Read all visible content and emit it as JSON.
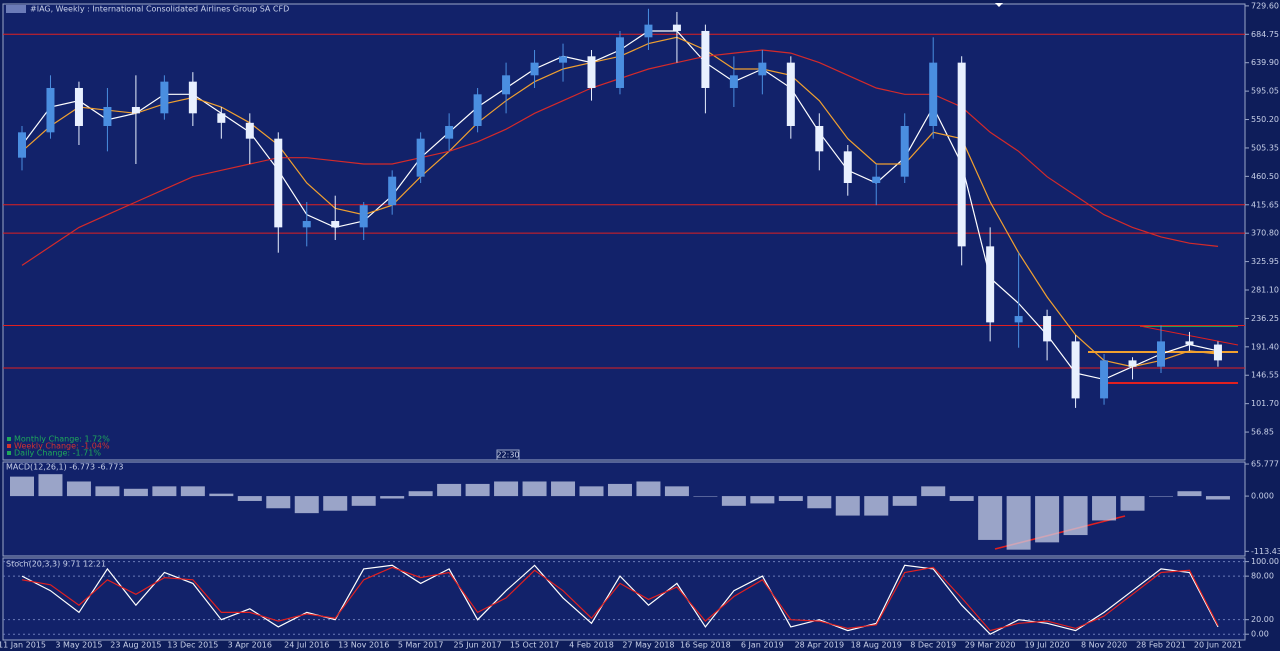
{
  "header": {
    "title": "#IAG, Weekly : International Consolidated Airlines Group SA CFD"
  },
  "info": [
    {
      "text": "Monthly Change: 1.72%",
      "color": "#1fa85a"
    },
    {
      "text": "Weekly Change: -1.04%",
      "color": "#d0332f"
    },
    {
      "text": "Daily Change: -1.71%",
      "color": "#1fa85a"
    }
  ],
  "time_label": "22:30",
  "chart_data": [
    {
      "type": "candlestick",
      "categories": [
        "11 Jan 2015",
        null,
        "3 May 2015",
        null,
        "23 Aug 2015",
        null,
        "13 Dec 2015",
        null,
        "3 Apr 2016",
        null,
        "24 Jul 2016",
        null,
        "13 Nov 2016",
        null,
        "5 Mar 2017",
        null,
        "25 Jun 2017",
        null,
        "15 Oct 2017",
        null,
        "4 Feb 2018",
        null,
        "27 May 2018",
        null,
        "16 Sep 2018",
        null,
        "6 Jan 2019",
        null,
        "28 Apr 2019",
        null,
        "18 Aug 2019",
        null,
        "8 Dec 2019",
        null,
        "29 Mar 2020",
        null,
        "19 Jul 2020",
        null,
        "8 Nov 2020",
        null,
        "28 Feb 2021",
        null,
        "20 Jun 2021"
      ],
      "open": [
        490,
        530,
        600,
        540,
        570,
        560,
        610,
        560,
        545,
        520,
        380,
        390,
        380,
        415,
        460,
        520,
        540,
        590,
        620,
        640,
        650,
        600,
        680,
        700,
        690,
        600,
        620,
        640,
        540,
        500,
        450,
        460,
        540,
        640,
        350,
        230,
        240,
        200,
        110,
        170,
        160,
        200,
        195
      ],
      "high": [
        540,
        620,
        610,
        600,
        620,
        620,
        625,
        570,
        560,
        530,
        420,
        430,
        420,
        470,
        530,
        560,
        600,
        640,
        660,
        670,
        660,
        690,
        725,
        720,
        700,
        650,
        660,
        650,
        560,
        510,
        480,
        560,
        680,
        650,
        380,
        340,
        250,
        210,
        180,
        175,
        225,
        215,
        200
      ],
      "low": [
        470,
        520,
        510,
        500,
        480,
        550,
        540,
        520,
        480,
        340,
        350,
        360,
        360,
        400,
        450,
        500,
        530,
        560,
        600,
        610,
        580,
        590,
        660,
        640,
        560,
        570,
        590,
        520,
        470,
        430,
        415,
        450,
        520,
        320,
        200,
        190,
        170,
        95,
        100,
        140,
        150,
        185,
        160
      ],
      "close": [
        530,
        600,
        540,
        570,
        560,
        610,
        560,
        545,
        520,
        380,
        390,
        380,
        415,
        460,
        520,
        540,
        590,
        620,
        640,
        650,
        600,
        680,
        700,
        690,
        600,
        620,
        640,
        540,
        500,
        450,
        460,
        540,
        640,
        350,
        230,
        240,
        200,
        110,
        170,
        160,
        200,
        195,
        170
      ],
      "up_color": "#4a8ee0",
      "down_color": "#e8f0ff",
      "overlays": [
        {
          "color": "#ffffff",
          "values": [
            510,
            570,
            580,
            550,
            560,
            590,
            590,
            560,
            530,
            470,
            400,
            380,
            390,
            430,
            490,
            530,
            570,
            600,
            630,
            650,
            640,
            660,
            690,
            690,
            640,
            610,
            630,
            600,
            530,
            470,
            450,
            490,
            570,
            480,
            300,
            260,
            210,
            150,
            140,
            160,
            180,
            195,
            185
          ]
        },
        {
          "color": "#f0a030",
          "values": [
            500,
            540,
            570,
            565,
            560,
            575,
            585,
            570,
            545,
            510,
            450,
            410,
            400,
            415,
            460,
            500,
            545,
            580,
            610,
            630,
            640,
            650,
            670,
            680,
            660,
            630,
            630,
            620,
            580,
            520,
            480,
            480,
            530,
            520,
            420,
            340,
            270,
            210,
            170,
            160,
            170,
            185,
            180
          ]
        },
        {
          "color": "#d42a2a",
          "values": [
            320,
            350,
            380,
            400,
            420,
            440,
            460,
            470,
            480,
            490,
            490,
            485,
            480,
            480,
            490,
            500,
            515,
            535,
            560,
            580,
            600,
            615,
            630,
            640,
            650,
            655,
            660,
            655,
            640,
            620,
            600,
            590,
            590,
            570,
            530,
            500,
            460,
            430,
            400,
            380,
            365,
            355,
            350
          ]
        }
      ],
      "levels": [
        684.75,
        415.65,
        370.8,
        225,
        158
      ],
      "level_color": "#e02020",
      "ylim": [
        12.75,
        731
      ],
      "yticks": [
        {
          "value": 729.6,
          "label": "729.60"
        },
        684.75,
        {
          "value": 639.9,
          "label": "639.90"
        },
        595.05,
        {
          "value": 550.2,
          "label": "550.20"
        },
        505.35,
        {
          "value": 460.5,
          "label": "460.50"
        },
        415.65,
        {
          "value": 370.8,
          "label": "370.80"
        },
        325.95,
        {
          "value": 281.1,
          "label": "281.10"
        },
        236.25,
        {
          "value": 191.4,
          "label": "191.40"
        },
        146.55,
        {
          "value": 101.7,
          "label": "101.70"
        },
        56.85
      ]
    },
    {
      "type": "bar",
      "title": "MACD(12,26,1) -6.773 -6.773",
      "values": [
        40,
        45,
        30,
        20,
        15,
        20,
        20,
        5,
        -10,
        -25,
        -35,
        -30,
        -20,
        -5,
        10,
        25,
        25,
        30,
        30,
        30,
        20,
        25,
        30,
        20,
        0,
        -20,
        -15,
        -10,
        -25,
        -40,
        -40,
        -20,
        20,
        -10,
        -90,
        -110,
        -95,
        -80,
        -50,
        -30,
        0,
        10,
        -7
      ],
      "color": "#c8d0e8",
      "ylim": [
        -123,
        70
      ],
      "yticks": [
        65.777,
        {
          "value": 0,
          "label": "0.000"
        },
        -113.432
      ]
    },
    {
      "type": "line",
      "title": "Stoch(20,3,3) 9.71 12.21",
      "series": [
        {
          "color": "#ffffff",
          "values": [
            80,
            60,
            30,
            90,
            40,
            85,
            70,
            20,
            35,
            10,
            30,
            20,
            90,
            95,
            70,
            90,
            20,
            60,
            95,
            50,
            15,
            80,
            40,
            70,
            10,
            60,
            80,
            10,
            20,
            5,
            15,
            95,
            90,
            40,
            0,
            20,
            15,
            5,
            30,
            60,
            90,
            85,
            10
          ]
        },
        {
          "color": "#e02020",
          "values": [
            75,
            68,
            40,
            75,
            55,
            78,
            75,
            30,
            30,
            18,
            28,
            22,
            75,
            92,
            78,
            85,
            30,
            50,
            88,
            60,
            22,
            70,
            48,
            65,
            18,
            52,
            75,
            20,
            18,
            8,
            13,
            85,
            92,
            50,
            5,
            15,
            18,
            8,
            25,
            55,
            85,
            88,
            12
          ]
        }
      ],
      "ylim": [
        -8,
        105
      ],
      "yticks": [
        {
          "value": 100,
          "label": "100.00"
        },
        {
          "value": 80,
          "label": "80.00"
        },
        {
          "value": 20,
          "label": "20.00"
        },
        {
          "value": 0,
          "label": "0.00"
        }
      ]
    }
  ]
}
